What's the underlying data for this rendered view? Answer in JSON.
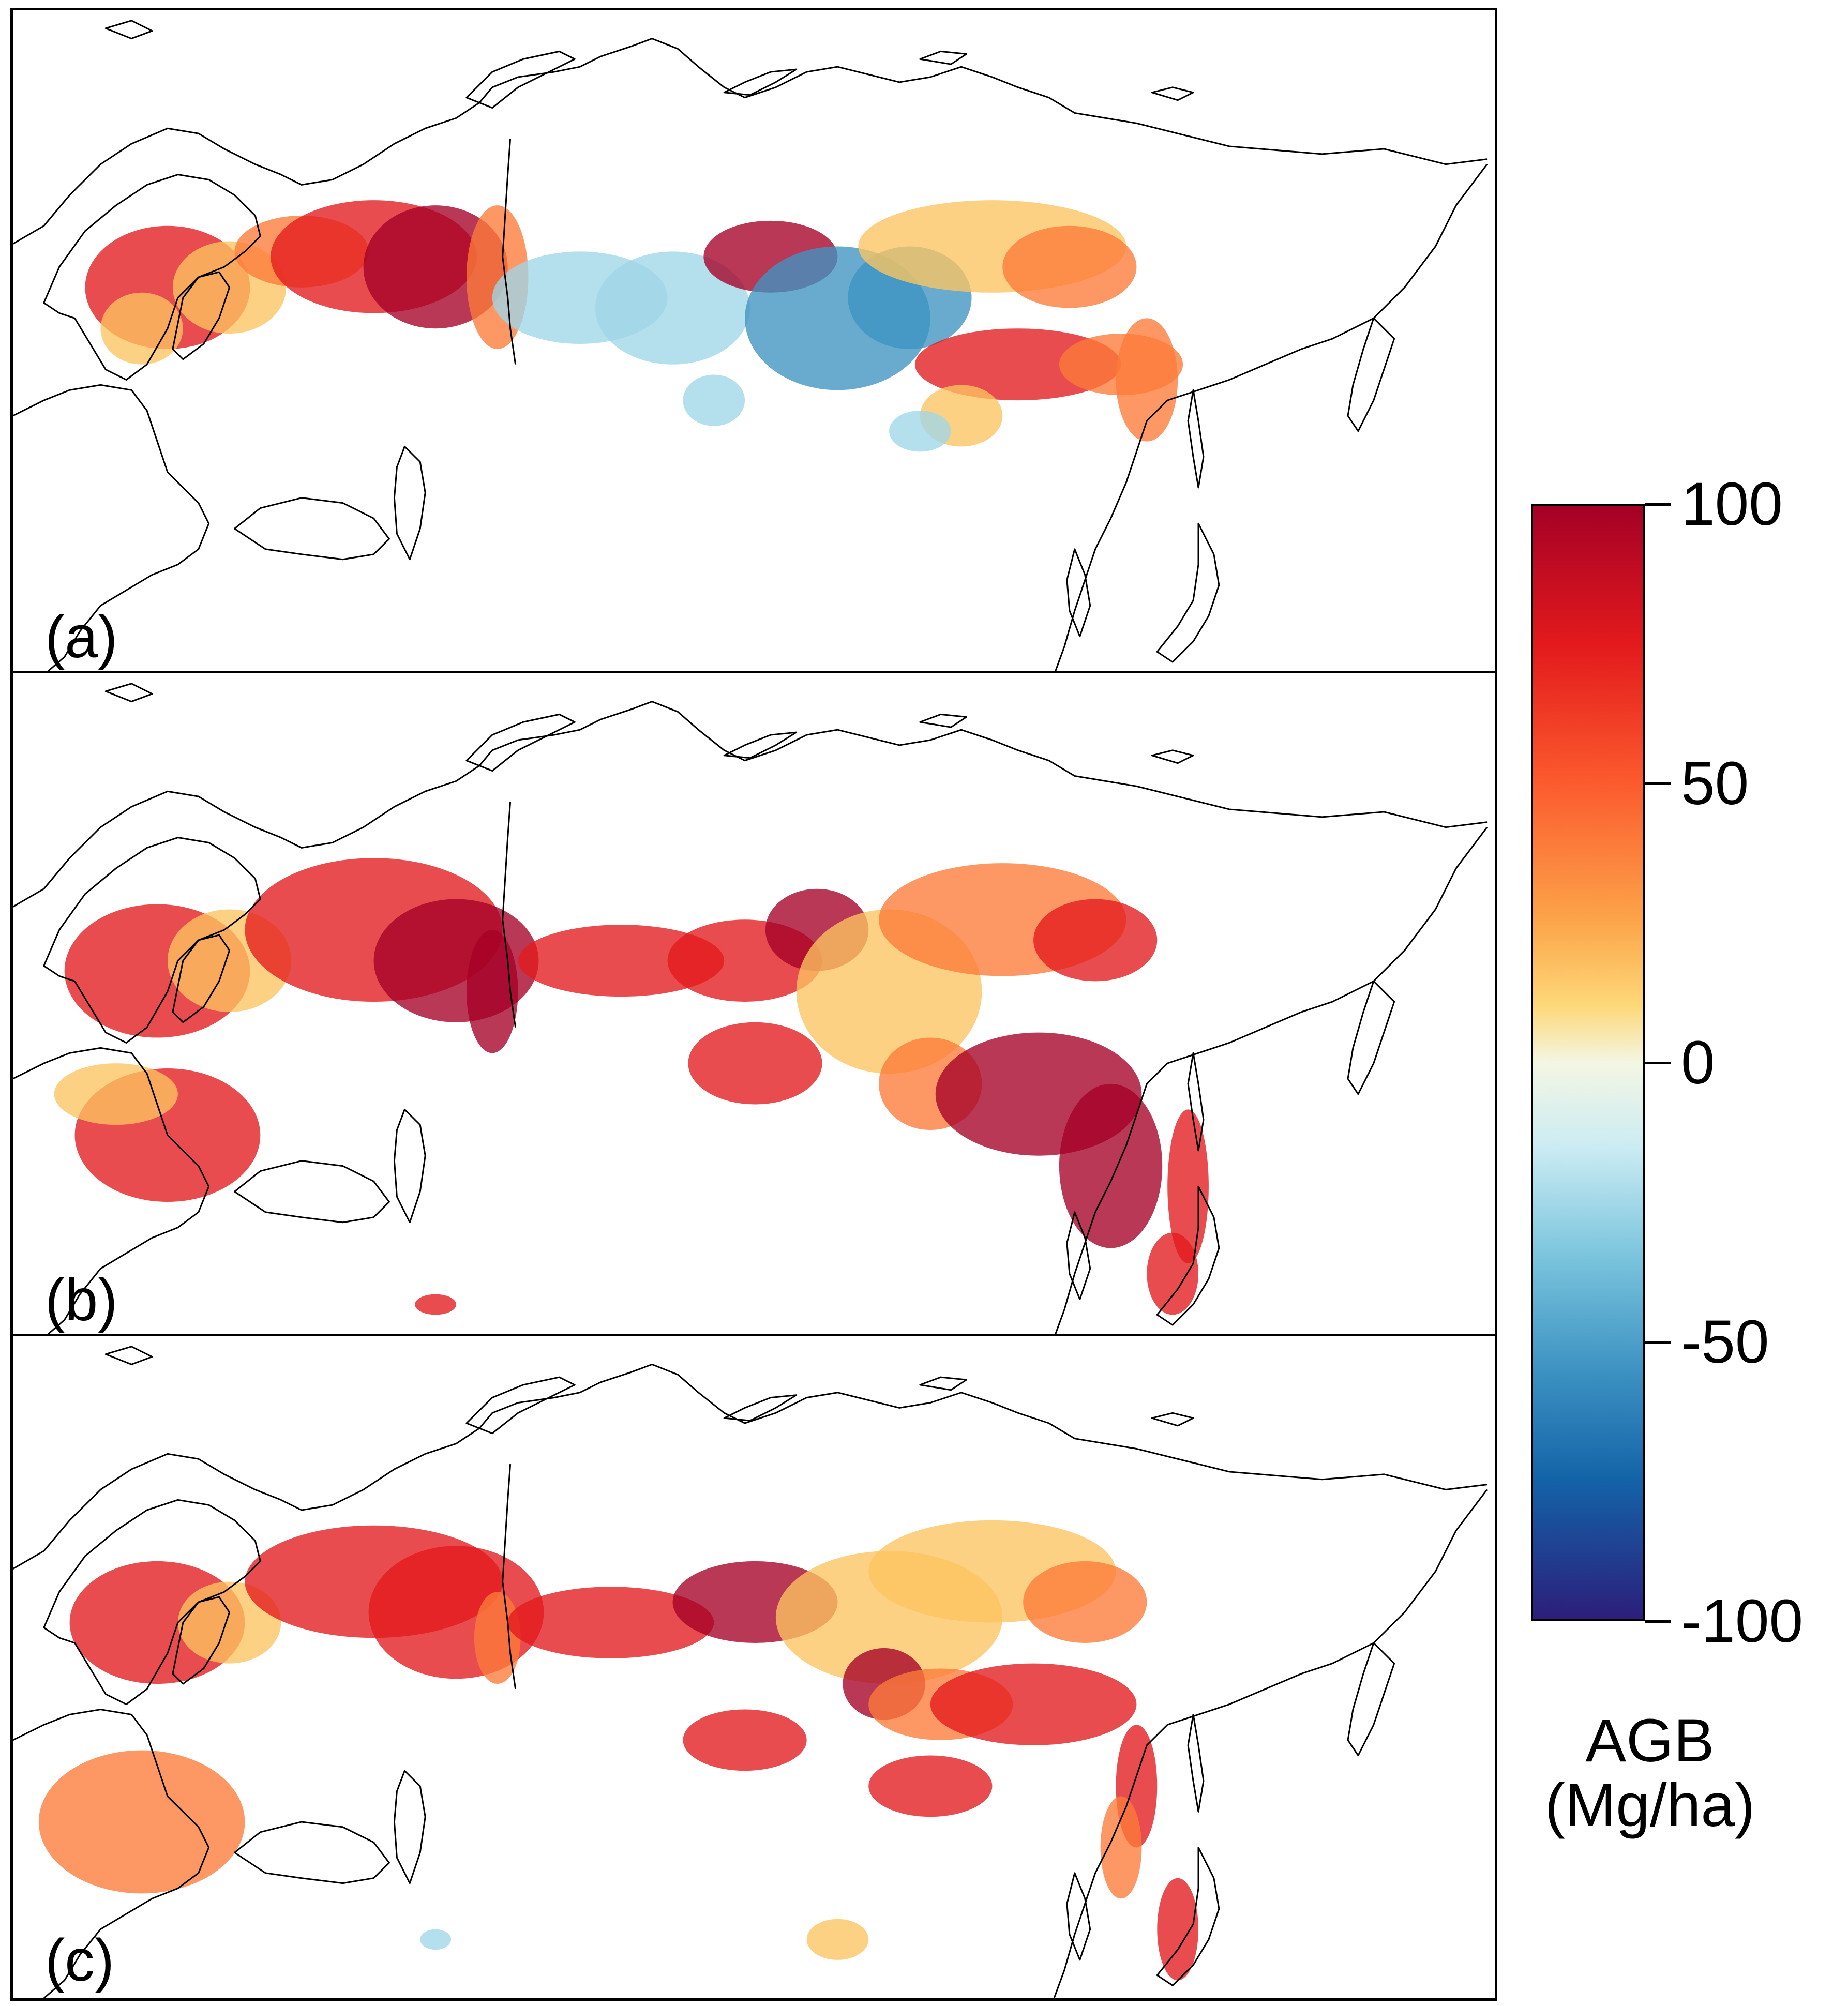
{
  "panels": [
    {
      "id": "a",
      "label": "(a)"
    },
    {
      "id": "b",
      "label": "(b)"
    },
    {
      "id": "c",
      "label": "(c)"
    }
  ],
  "legend": {
    "title_line1": "AGB",
    "title_line2": "(Mg/ha)",
    "ticks": [
      {
        "value": 100,
        "label": "100"
      },
      {
        "value": 50,
        "label": "50"
      },
      {
        "value": 0,
        "label": "0"
      },
      {
        "value": -50,
        "label": "-50"
      },
      {
        "value": -100,
        "label": "-100"
      }
    ],
    "range": [
      -100,
      100
    ],
    "color_stops": [
      {
        "value": 100,
        "color": "#a50026"
      },
      {
        "value": 75,
        "color": "#e31a1c"
      },
      {
        "value": 50,
        "color": "#fc5b2e"
      },
      {
        "value": 25,
        "color": "#fca64a"
      },
      {
        "value": 10,
        "color": "#fdd97a"
      },
      {
        "value": 0,
        "color": "#f4f6e4"
      },
      {
        "value": -15,
        "color": "#ccecf3"
      },
      {
        "value": -35,
        "color": "#7ac4dd"
      },
      {
        "value": -55,
        "color": "#3d93c2"
      },
      {
        "value": -75,
        "color": "#1363a8"
      },
      {
        "value": -100,
        "color": "#2c1e7a"
      }
    ]
  },
  "colors": {
    "coastline": "#000000",
    "positive_dark": "#a50026",
    "positive_red": "#e31a1c",
    "positive_orange": "#fc7b38",
    "positive_yellow": "#fdc460",
    "negative_light": "#9fd6e8",
    "negative_blue": "#3d93c2"
  }
}
